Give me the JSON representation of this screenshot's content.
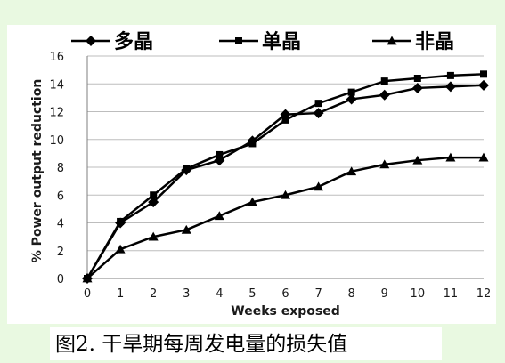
{
  "chart_data": {
    "type": "line",
    "xlabel": "Weeks exposed",
    "ylabel": "% Power output reduction",
    "x": [
      0,
      1,
      2,
      3,
      4,
      5,
      6,
      7,
      8,
      9,
      10,
      11,
      12
    ],
    "xlim": [
      0,
      12
    ],
    "ylim": [
      0,
      16
    ],
    "yticks": [
      0,
      2,
      4,
      6,
      8,
      10,
      12,
      14,
      16
    ],
    "grid": "horizontal",
    "legend": "top",
    "series": [
      {
        "name": "多晶",
        "marker": "diamond",
        "color": "#000000",
        "values": [
          0,
          4.0,
          5.5,
          7.8,
          8.5,
          9.9,
          11.8,
          11.9,
          12.9,
          13.2,
          13.7,
          13.8,
          13.9
        ]
      },
      {
        "name": "单晶",
        "marker": "square",
        "color": "#000000",
        "values": [
          0,
          4.1,
          6.0,
          7.9,
          8.9,
          9.7,
          11.4,
          12.6,
          13.4,
          14.2,
          14.4,
          14.6,
          14.7
        ]
      },
      {
        "name": "非晶",
        "marker": "triangle",
        "color": "#000000",
        "values": [
          0,
          2.1,
          3.0,
          3.5,
          4.5,
          5.5,
          6.0,
          6.6,
          7.7,
          8.2,
          8.5,
          8.7,
          8.7
        ]
      }
    ]
  },
  "caption": "图2.  干旱期每周发电量的损失值"
}
